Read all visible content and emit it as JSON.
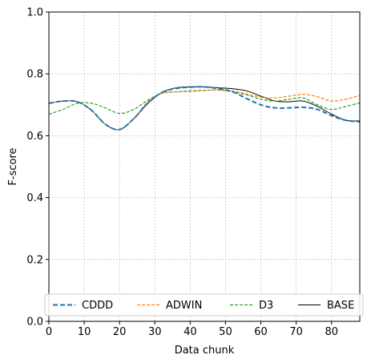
{
  "chart_data": {
    "type": "line",
    "title": "",
    "xlabel": "Data chunk",
    "ylabel": "F-score",
    "xlim": [
      0,
      88
    ],
    "ylim": [
      0,
      1
    ],
    "xticks": [
      0,
      10,
      20,
      30,
      40,
      50,
      60,
      70,
      80
    ],
    "yticks": [
      0.0,
      0.2,
      0.4,
      0.6,
      0.8,
      1.0
    ],
    "grid": true,
    "legend_position": "bottom",
    "x": [
      0,
      4,
      8,
      12,
      16,
      20,
      24,
      28,
      32,
      36,
      40,
      44,
      48,
      52,
      56,
      60,
      64,
      68,
      72,
      76,
      80,
      84,
      88
    ],
    "series": [
      {
        "name": "CDDD",
        "color": "#1f77b4",
        "style": "dashed-thick",
        "values": [
          0.705,
          0.712,
          0.71,
          0.683,
          0.637,
          0.62,
          0.655,
          0.705,
          0.74,
          0.753,
          0.757,
          0.758,
          0.752,
          0.742,
          0.72,
          0.7,
          0.69,
          0.69,
          0.692,
          0.685,
          0.665,
          0.65,
          0.645
        ]
      },
      {
        "name": "ADWIN",
        "color": "#ff7f0e",
        "style": "dashed",
        "values": [
          0.705,
          0.712,
          0.71,
          0.683,
          0.637,
          0.62,
          0.655,
          0.71,
          0.738,
          0.742,
          0.743,
          0.746,
          0.748,
          0.745,
          0.735,
          0.725,
          0.722,
          0.728,
          0.734,
          0.726,
          0.712,
          0.718,
          0.73
        ]
      },
      {
        "name": "D3",
        "color": "#2ca02c",
        "style": "dashed",
        "values": [
          0.67,
          0.685,
          0.705,
          0.705,
          0.69,
          0.672,
          0.685,
          0.715,
          0.737,
          0.742,
          0.745,
          0.747,
          0.748,
          0.742,
          0.732,
          0.718,
          0.712,
          0.718,
          0.722,
          0.7,
          0.685,
          0.695,
          0.706
        ]
      },
      {
        "name": "BASE",
        "color": "#000000",
        "style": "solid",
        "values": [
          0.705,
          0.712,
          0.71,
          0.683,
          0.637,
          0.62,
          0.655,
          0.705,
          0.74,
          0.755,
          0.758,
          0.758,
          0.755,
          0.752,
          0.745,
          0.728,
          0.712,
          0.71,
          0.712,
          0.695,
          0.67,
          0.65,
          0.648
        ]
      }
    ]
  }
}
